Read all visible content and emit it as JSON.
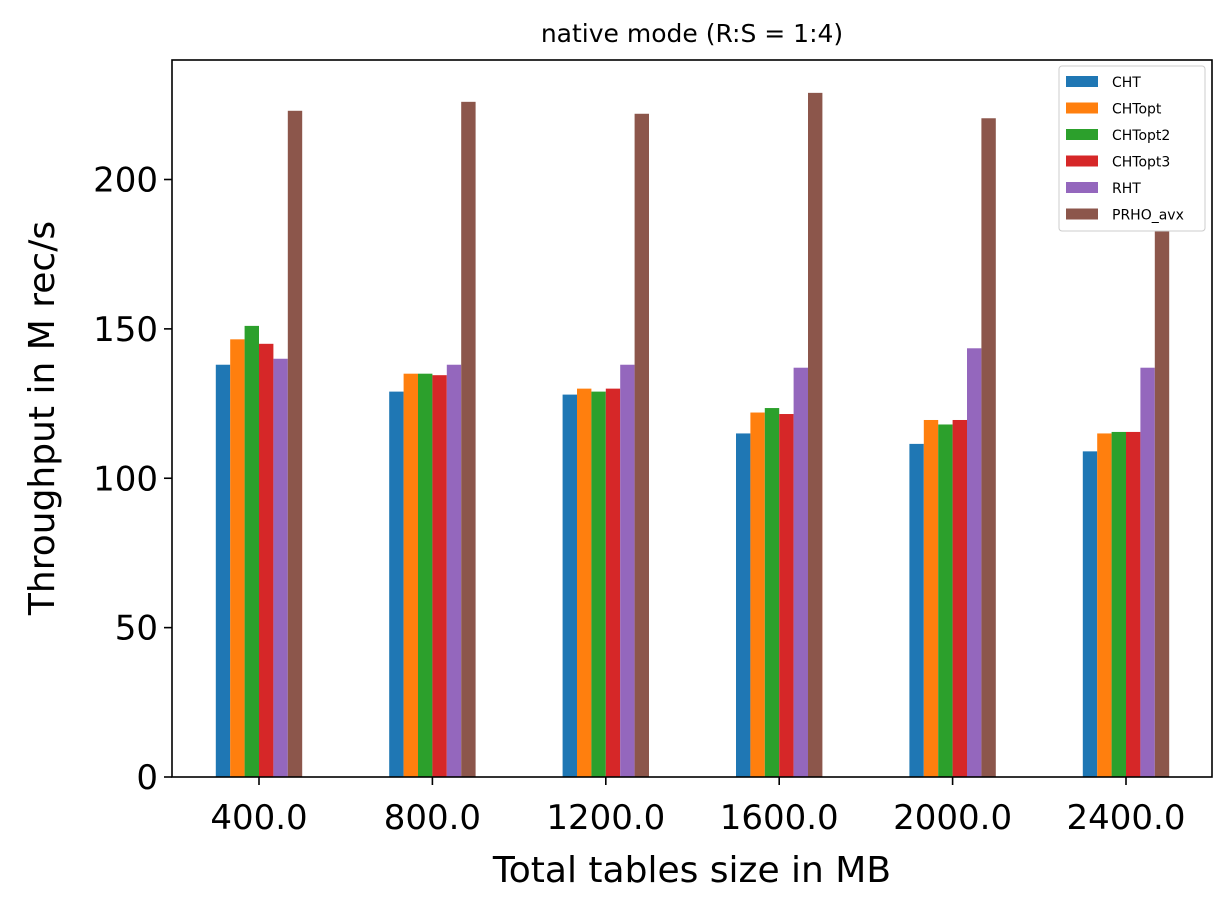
{
  "chart_data": {
    "type": "bar",
    "title": "native mode (R:S = 1:4)",
    "xlabel": "Total tables size in MB",
    "ylabel": "Throughput in M rec/s",
    "categories": [
      "400.0",
      "800.0",
      "1200.0",
      "1600.0",
      "2000.0",
      "2400.0"
    ],
    "ylim": [
      0,
      240
    ],
    "yticks": [
      0,
      50,
      100,
      150,
      200
    ],
    "grid": false,
    "legend_position": "top-right",
    "series": [
      {
        "name": "CHT",
        "color": "#1f77b4",
        "values": [
          138,
          129,
          128,
          115,
          111.5,
          109
        ]
      },
      {
        "name": "CHTopt",
        "color": "#ff7f0e",
        "values": [
          146.5,
          135,
          130,
          122,
          119.5,
          115
        ]
      },
      {
        "name": "CHTopt2",
        "color": "#2ca02c",
        "values": [
          151,
          135,
          129,
          123.5,
          118,
          115.5
        ]
      },
      {
        "name": "CHTopt3",
        "color": "#d62728",
        "values": [
          145,
          134.5,
          130,
          121.5,
          119.5,
          115.5
        ]
      },
      {
        "name": "RHT",
        "color": "#9467bd",
        "values": [
          140,
          138,
          138,
          137,
          143.5,
          137
        ]
      },
      {
        "name": "PRHO_avx",
        "color": "#8c564b",
        "values": [
          223,
          226,
          222,
          229,
          220.5,
          220.5
        ]
      }
    ]
  }
}
